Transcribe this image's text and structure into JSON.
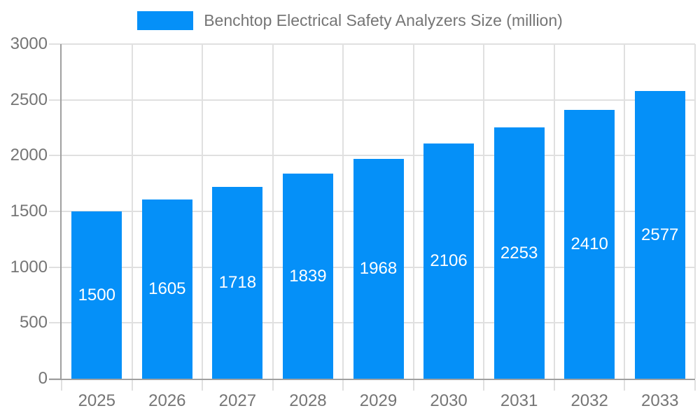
{
  "chart_data": {
    "type": "bar",
    "title": "Benchtop Electrical Safety Analyzers Size (million)",
    "categories": [
      "2025",
      "2026",
      "2027",
      "2028",
      "2029",
      "2030",
      "2031",
      "2032",
      "2033"
    ],
    "values": [
      1500,
      1605,
      1718,
      1839,
      1968,
      2106,
      2253,
      2410,
      2577
    ],
    "xlabel": "",
    "ylabel": "",
    "ylim": [
      0,
      3000
    ],
    "yticks": [
      0,
      500,
      1000,
      1500,
      2000,
      2500,
      3000
    ],
    "grid": true,
    "legend_position": "top",
    "value_labels": "inside-center-white",
    "colors": {
      "bar": "#0590f8",
      "grid": "#e0e0e0",
      "axis": "#a0a0a0",
      "tick_text": "#757575",
      "value_text": "#ffffff",
      "background": "#ffffff"
    }
  }
}
